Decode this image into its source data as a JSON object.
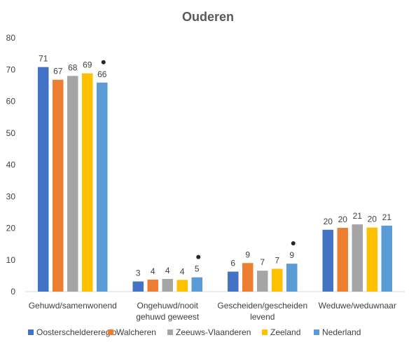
{
  "chart_data": {
    "type": "bar",
    "title": "Ouderen",
    "xlabel": "",
    "ylabel": "",
    "ylim": [
      0,
      80
    ],
    "yticks": [
      0,
      10,
      20,
      30,
      40,
      50,
      60,
      70,
      80
    ],
    "grid": false,
    "legend_position": "bottom",
    "categories": [
      [
        "Gehuwd/samenwonend"
      ],
      [
        "Ongehuwd/nooit",
        "gehuwd geweest"
      ],
      [
        "Gescheiden/gescheiden",
        "levend"
      ],
      [
        "Weduwe/weduwnaar"
      ]
    ],
    "series": [
      {
        "name": "Oosterscheldereregio",
        "color": "#4472C4",
        "values": [
          70.8,
          3.2,
          6.3,
          19.5
        ],
        "labels": [
          "71",
          "3",
          "6",
          "20"
        ]
      },
      {
        "name": "Walcheren",
        "color": "#ED7D31",
        "values": [
          66.8,
          3.8,
          9.0,
          20.1
        ],
        "labels": [
          "67",
          "4",
          "9",
          "20"
        ]
      },
      {
        "name": "Zeeuws-Vlaanderen",
        "color": "#A5A5A5",
        "values": [
          68.0,
          4.0,
          6.6,
          21.2
        ],
        "labels": [
          "68",
          "4",
          "7",
          "21"
        ]
      },
      {
        "name": "Zeeland",
        "color": "#FFC000",
        "values": [
          68.8,
          3.7,
          7.2,
          20.2
        ],
        "labels": [
          "69",
          "4",
          "7",
          "20"
        ]
      },
      {
        "name": "Nederland",
        "color": "#5B9BD5",
        "values": [
          65.9,
          4.5,
          8.8,
          20.8
        ],
        "labels": [
          "66",
          "5",
          "9",
          "21"
        ]
      }
    ],
    "markers": [
      {
        "category_index": 0,
        "series_index": 4,
        "symbol": "•"
      },
      {
        "category_index": 1,
        "series_index": 4,
        "symbol": "•"
      },
      {
        "category_index": 2,
        "series_index": 4,
        "symbol": "•"
      }
    ]
  }
}
